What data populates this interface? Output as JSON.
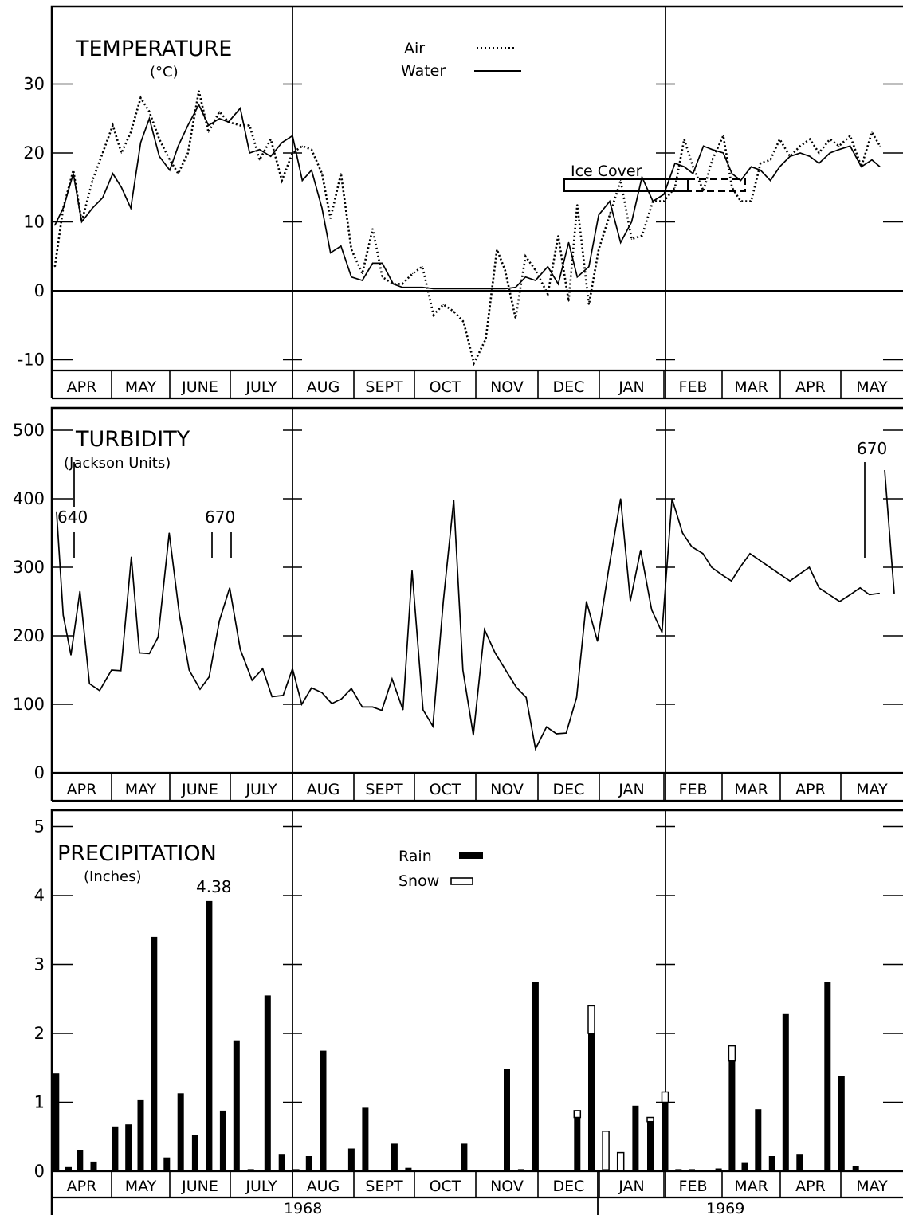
{
  "chart_data": [
    {
      "type": "line",
      "title": "TEMPERATURE",
      "subtitle": "(°C)",
      "ylim": [
        -12,
        40
      ],
      "yticks": [
        -10,
        0,
        10,
        20,
        30
      ],
      "months": [
        "APR",
        "MAY",
        "JUNE",
        "JULY",
        "AUG",
        "SEPT",
        "OCT",
        "NOV",
        "DEC",
        "JAN",
        "FEB",
        "MAR",
        "APR",
        "MAY"
      ],
      "legend": [
        {
          "label": "Air",
          "style": "dotted"
        },
        {
          "label": "Water",
          "style": "solid"
        }
      ],
      "annotation": "Ice Cover",
      "series": [
        {
          "name": "Air",
          "x": [
            0.05,
            0.19,
            0.36,
            0.5,
            0.68,
            0.85,
            1.02,
            1.17,
            1.33,
            1.5,
            1.65,
            1.82,
            2.0,
            2.14,
            2.3,
            2.48,
            2.64,
            2.82,
            2.97,
            3.16,
            3.31,
            3.47,
            3.65,
            3.83,
            4.0,
            4.16,
            4.31,
            4.48,
            4.62,
            4.79,
            4.96,
            5.14,
            5.31,
            5.47,
            5.65,
            5.8,
            5.97,
            6.13,
            6.31,
            6.47,
            6.64,
            6.8,
            6.97,
            7.16,
            7.34,
            7.47,
            7.64,
            7.8,
            7.96,
            8.16,
            8.33,
            8.5,
            8.64,
            8.83,
            8.99,
            9.16,
            9.33,
            9.5,
            9.66,
            9.83,
            10.0,
            10.19,
            10.35,
            10.5,
            10.68,
            10.83,
            11.02,
            11.17,
            11.32,
            11.5,
            11.66,
            11.83,
            11.99,
            12.16,
            12.33,
            12.49,
            12.64,
            12.82,
            12.97,
            13.15,
            13.33,
            13.5,
            13.63
          ],
          "y": [
            3.5,
            12,
            17.5,
            10,
            16,
            20,
            24,
            20,
            23,
            28,
            26,
            22,
            19,
            17,
            20,
            29,
            23,
            26,
            24.5,
            24,
            24,
            19,
            22,
            16,
            20,
            21,
            20.5,
            17,
            10.5,
            17,
            6,
            2.5,
            9,
            2,
            1,
            1,
            2.5,
            3.5,
            -3.5,
            -2,
            -3,
            -4.5,
            -10.5,
            -7,
            6,
            3,
            -4,
            5,
            3,
            -0.5,
            8,
            -1.5,
            12.5,
            -2,
            6,
            11,
            16,
            7.5,
            8,
            13,
            13,
            15,
            22,
            18,
            14.5,
            19,
            22.5,
            15,
            13,
            13,
            18.5,
            19,
            22,
            19.5,
            21,
            22,
            20,
            22,
            21,
            22.5,
            18,
            23,
            21
          ]
        },
        {
          "name": "Water",
          "x": [
            0.05,
            0.19,
            0.36,
            0.5,
            0.68,
            0.85,
            1.02,
            1.17,
            1.33,
            1.5,
            1.65,
            1.82,
            2.0,
            2.14,
            2.3,
            2.48,
            2.64,
            2.82,
            2.97,
            3.16,
            3.31,
            3.47,
            3.65,
            3.83,
            4.0,
            4.16,
            4.31,
            4.48,
            4.62,
            4.79,
            4.96,
            5.14,
            5.31,
            5.47,
            5.65,
            5.8,
            5.97,
            6.13,
            6.31,
            6.47,
            6.64,
            6.8,
            6.97,
            7.16,
            7.34,
            7.47,
            7.64,
            7.8,
            7.96,
            8.16,
            8.33,
            8.5,
            8.64,
            8.83,
            8.99,
            9.16,
            9.33,
            9.5,
            9.66,
            9.83,
            10.0,
            10.19,
            10.35,
            10.5,
            10.68,
            10.83,
            11.02,
            11.17,
            11.32,
            11.5,
            11.66,
            11.83,
            11.99,
            12.16,
            12.33,
            12.49,
            12.64,
            12.82,
            12.97,
            13.15,
            13.33,
            13.5,
            13.63
          ],
          "y": [
            9.5,
            12,
            17,
            10,
            12,
            13.5,
            17,
            15,
            12,
            21.5,
            25,
            19.5,
            17.5,
            21,
            24,
            27,
            24,
            25,
            24.5,
            26.5,
            20,
            20.5,
            19.5,
            21.5,
            22.5,
            16,
            17.5,
            12,
            5.5,
            6.5,
            2,
            1.5,
            4,
            4,
            1,
            0.5,
            0.5,
            0.5,
            0.3,
            0.3,
            0.3,
            0.3,
            0.3,
            0.3,
            0.3,
            0.3,
            0.5,
            2,
            1.5,
            3.5,
            1,
            7,
            2,
            3.5,
            11,
            13,
            7,
            10,
            16.5,
            13,
            14,
            18.5,
            18,
            17,
            21,
            20.5,
            20,
            17,
            16,
            18,
            17.5,
            16,
            18,
            19.5,
            20,
            19.5,
            18.5,
            20,
            20.5,
            21,
            18,
            19,
            18
          ]
        }
      ]
    },
    {
      "type": "line",
      "title": "TURBIDITY",
      "subtitle": "(Jackson Units)",
      "ylim": [
        0,
        520
      ],
      "yticks": [
        0,
        100,
        200,
        300,
        400,
        500
      ],
      "months": [
        "APR",
        "MAY",
        "JUNE",
        "JULY",
        "AUG",
        "SEPT",
        "OCT",
        "NOV",
        "DEC",
        "JAN",
        "FEB",
        "MAR",
        "APR",
        "MAY"
      ],
      "annotations": [
        "640",
        "670",
        "670"
      ],
      "series": [
        {
          "name": "Turbidity",
          "x": [
            0.08,
            0.19,
            0.32,
            0.47,
            0.63,
            0.8,
            1.0,
            1.16,
            1.34,
            1.48,
            1.65,
            1.8,
            1.99,
            2.16,
            2.32,
            2.5,
            2.65,
            2.82,
            2.99,
            3.16,
            3.35,
            3.52,
            3.67,
            3.85,
            4.0,
            4.15,
            4.31,
            4.48,
            4.64,
            4.8,
            4.96,
            5.14,
            5.31,
            5.46,
            5.63,
            5.81,
            5.96,
            6.14,
            6.3,
            6.47,
            6.64,
            6.79,
            6.96,
            7.14,
            7.31,
            7.48,
            7.65,
            7.81,
            7.96,
            8.14,
            8.3,
            8.46,
            8.63,
            8.79,
            8.97,
            9.15,
            9.33,
            9.48,
            9.64,
            9.81,
            9.97,
            10.14,
            10.32,
            10.48,
            10.67,
            10.82,
            10.98,
            11.16,
            11.31,
            11.48,
            11.65,
            11.82,
            11.99,
            12.16,
            12.32,
            12.48,
            12.64,
            12.81,
            12.98,
            13.15,
            13.31,
            13.46,
            13.62
          ],
          "y": [
            380,
            230,
            172,
            265,
            130,
            120,
            150,
            149,
            315,
            175,
            174,
            198,
            350,
            230,
            150,
            122,
            140,
            222,
            270,
            180,
            135,
            152,
            111,
            113,
            152,
            100,
            124,
            117,
            101,
            108,
            123,
            96,
            96,
            91,
            137,
            92,
            295,
            92,
            68,
            250,
            398,
            150,
            55,
            209,
            175,
            150,
            125,
            110,
            35,
            67,
            57,
            58,
            110,
            250,
            192,
            300,
            400,
            251,
            325,
            238,
            205,
            400,
            350,
            330,
            320,
            300,
            290,
            280,
            300,
            320,
            310,
            300,
            290,
            280,
            290,
            300,
            270,
            260,
            250,
            260,
            270,
            260,
            262
          ]
        }
      ]
    },
    {
      "type": "bar",
      "title": "PRECIPITATION",
      "subtitle": "(Inches)",
      "ylim": [
        0,
        5.3
      ],
      "yticks": [
        0,
        1,
        2,
        3,
        4,
        5
      ],
      "months": [
        "APR",
        "MAY",
        "JUNE",
        "JULY",
        "AUG",
        "SEPT",
        "OCT",
        "NOV",
        "DEC",
        "JAN",
        "FEB",
        "MAR",
        "APR",
        "MAY"
      ],
      "years": [
        "1968",
        "1969"
      ],
      "legend": [
        {
          "label": "Rain",
          "style": "filled"
        },
        {
          "label": "Snow",
          "style": "open"
        }
      ],
      "annotation": "4.38",
      "series": [
        {
          "name": "Rain",
          "x": [
            0.07,
            0.28,
            0.47,
            0.7,
            1.06,
            1.29,
            1.5,
            1.73,
            1.95,
            2.18,
            2.42,
            2.65,
            2.88,
            3.1,
            3.33,
            3.6,
            3.83,
            4.06,
            4.27,
            4.5,
            4.73,
            4.96,
            5.19,
            5.44,
            5.67,
            5.9,
            6.12,
            6.35,
            6.58,
            6.81,
            7.04,
            7.27,
            7.5,
            7.73,
            7.96,
            8.19,
            8.42,
            8.64,
            8.87,
            9.1,
            9.33,
            9.56,
            9.79,
            10.02,
            10.25,
            10.48,
            10.71,
            10.94,
            11.17,
            11.39,
            11.62,
            11.86,
            12.09,
            12.32,
            12.55,
            12.78,
            13.01,
            13.24,
            13.47,
            13.7
          ],
          "values": [
            1.42,
            0.06,
            0.3,
            0.14,
            0.65,
            0.68,
            1.03,
            3.4,
            0.2,
            1.13,
            0.52,
            3.92,
            0.88,
            1.9,
            0.03,
            2.55,
            0.24,
            0.03,
            0.22,
            1.75,
            0.02,
            0.33,
            0.92,
            0.02,
            0.4,
            0.05,
            0.02,
            0.02,
            0.02,
            0.4,
            0.02,
            0.02,
            1.48,
            0.03,
            2.75,
            0.02,
            0.02,
            0.78,
            2.0,
            0.02,
            0.01,
            0.95,
            0.72,
            1.0,
            0.03,
            0.03,
            0.02,
            0.04,
            1.6,
            0.12,
            0.9,
            0.22,
            2.28,
            0.24,
            0.02,
            2.75,
            1.38,
            0.08,
            0.02,
            0.02
          ],
          "snow": [
            0,
            0,
            0,
            0,
            0,
            0,
            0,
            0,
            0,
            0,
            0,
            0,
            0,
            0,
            0,
            0,
            0,
            0,
            0,
            0,
            0,
            0,
            0,
            0,
            0,
            0,
            0,
            0,
            0,
            0,
            0,
            0,
            0,
            0,
            0,
            0,
            0,
            0.1,
            0.4,
            0.56,
            0.26,
            0,
            0.06,
            0.15,
            0,
            0,
            0,
            0,
            0.22,
            0,
            0,
            0,
            0,
            0,
            0,
            0,
            0,
            0,
            0,
            0
          ]
        }
      ]
    }
  ]
}
